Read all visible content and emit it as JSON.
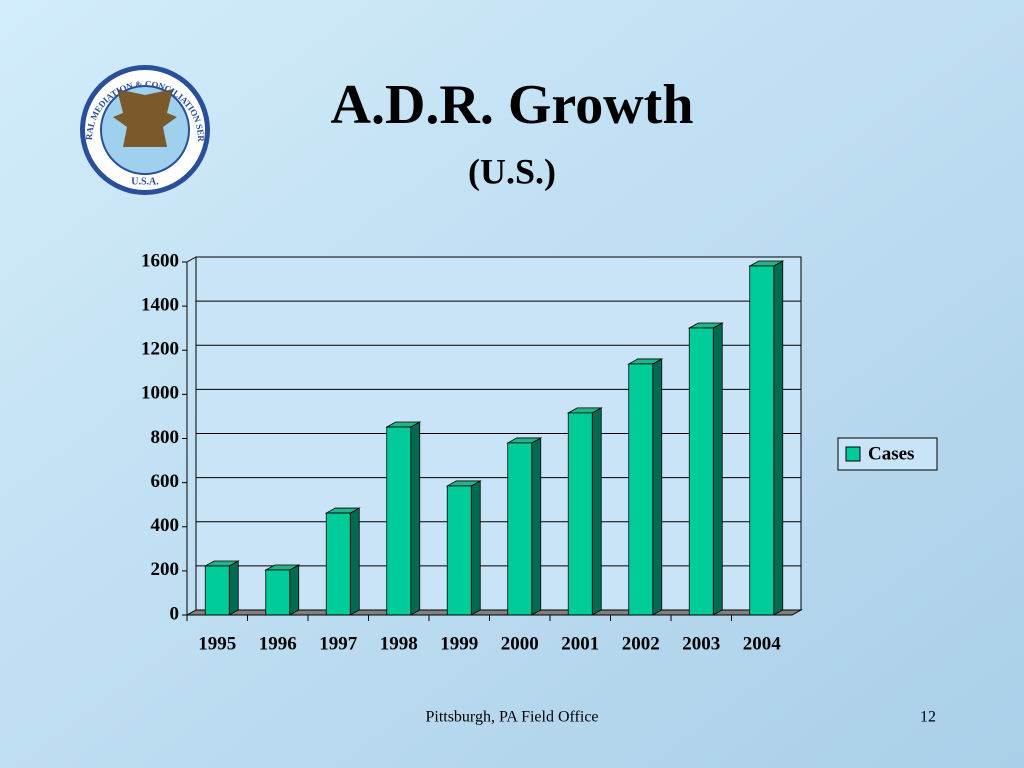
{
  "slide": {
    "title": "A.D.R. Growth",
    "subtitle": "(U.S.)",
    "footer": "Pittsburgh, PA Field Office",
    "page_number": "12",
    "logo": {
      "ring_text": "FEDERAL MEDIATION & CONCILIATION SERVICE",
      "country": "U.S.A."
    }
  },
  "chart_data": {
    "type": "bar",
    "categories": [
      "1995",
      "1996",
      "1997",
      "1998",
      "1999",
      "2000",
      "2001",
      "2002",
      "2003",
      "2004"
    ],
    "series": [
      {
        "name": "Cases",
        "color": "#00cc99",
        "values": [
          222,
          204,
          462,
          852,
          585,
          780,
          916,
          1138,
          1301,
          1582
        ]
      }
    ],
    "ylim": [
      0,
      1600
    ],
    "yticks": [
      0,
      200,
      400,
      600,
      800,
      1000,
      1200,
      1400,
      1600
    ],
    "grid": true,
    "legend": "right"
  }
}
